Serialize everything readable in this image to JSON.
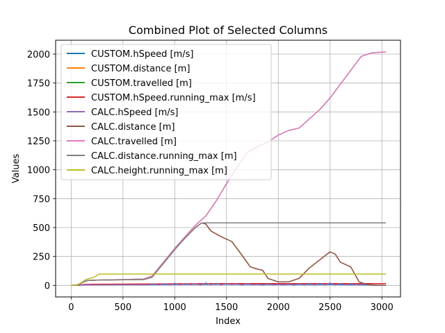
{
  "chart_data": {
    "type": "line",
    "title": "Combined Plot of Selected Columns",
    "xlabel": "Index",
    "ylabel": "Values",
    "xlim": [
      -150,
      3180
    ],
    "ylim": [
      -100,
      2120
    ],
    "xticks": [
      0,
      500,
      1000,
      1500,
      2000,
      2500,
      3000
    ],
    "yticks": [
      0,
      250,
      500,
      750,
      1000,
      1250,
      1500,
      1750,
      2000
    ],
    "grid": true,
    "legend_position": "upper-left",
    "series": [
      {
        "name": "CUSTOM.hSpeed [m/s]",
        "color": "#1f77b4",
        "points": [
          [
            0,
            0
          ],
          [
            80,
            1
          ],
          [
            100,
            3
          ],
          [
            130,
            5
          ],
          [
            200,
            6
          ],
          [
            800,
            6
          ],
          [
            1000,
            8
          ],
          [
            1500,
            9
          ],
          [
            2000,
            6
          ],
          [
            2500,
            8
          ],
          [
            3040,
            0
          ]
        ]
      },
      {
        "name": "CUSTOM.distance [m]",
        "color": "#ff7f0e",
        "points": [
          [
            0,
            0
          ],
          [
            70,
            5
          ],
          [
            120,
            30
          ],
          [
            160,
            42
          ],
          [
            250,
            45
          ],
          [
            500,
            48
          ],
          [
            700,
            50
          ],
          [
            780,
            70
          ],
          [
            900,
            200
          ],
          [
            1000,
            310
          ],
          [
            1100,
            410
          ],
          [
            1200,
            500
          ],
          [
            1260,
            540
          ],
          [
            1300,
            530
          ],
          [
            1350,
            470
          ],
          [
            1450,
            420
          ],
          [
            1550,
            380
          ],
          [
            1650,
            260
          ],
          [
            1730,
            160
          ],
          [
            1800,
            140
          ],
          [
            1850,
            130
          ],
          [
            1900,
            60
          ],
          [
            2000,
            30
          ],
          [
            2100,
            30
          ],
          [
            2200,
            60
          ],
          [
            2300,
            150
          ],
          [
            2400,
            220
          ],
          [
            2500,
            290
          ],
          [
            2550,
            270
          ],
          [
            2600,
            200
          ],
          [
            2700,
            160
          ],
          [
            2780,
            30
          ],
          [
            2850,
            10
          ],
          [
            2950,
            0
          ],
          [
            3040,
            0
          ]
        ]
      },
      {
        "name": "CUSTOM.travelled [m]",
        "color": "#2ca02c",
        "points": [
          [
            0,
            0
          ],
          [
            70,
            5
          ],
          [
            120,
            30
          ],
          [
            160,
            42
          ],
          [
            250,
            45
          ],
          [
            500,
            50
          ],
          [
            700,
            55
          ],
          [
            780,
            80
          ],
          [
            900,
            210
          ],
          [
            1000,
            320
          ],
          [
            1100,
            420
          ],
          [
            1200,
            520
          ],
          [
            1300,
            600
          ],
          [
            1400,
            730
          ],
          [
            1500,
            880
          ],
          [
            1600,
            1020
          ],
          [
            1700,
            1150
          ],
          [
            1800,
            1200
          ],
          [
            1900,
            1240
          ],
          [
            2000,
            1300
          ],
          [
            2100,
            1340
          ],
          [
            2200,
            1360
          ],
          [
            2300,
            1440
          ],
          [
            2400,
            1520
          ],
          [
            2500,
            1620
          ],
          [
            2600,
            1740
          ],
          [
            2700,
            1860
          ],
          [
            2800,
            1980
          ],
          [
            2900,
            2010
          ],
          [
            3040,
            2020
          ]
        ]
      },
      {
        "name": "CUSTOM.hSpeed.running_max [m/s]",
        "color": "#d62728",
        "points": [
          [
            0,
            0
          ],
          [
            80,
            2
          ],
          [
            100,
            5
          ],
          [
            130,
            8
          ],
          [
            200,
            10
          ],
          [
            800,
            12
          ],
          [
            1000,
            14
          ],
          [
            1500,
            15
          ],
          [
            3040,
            15
          ]
        ]
      },
      {
        "name": "CALC.hSpeed [m/s]",
        "color": "#9467bd",
        "points": [
          [
            0,
            0
          ],
          [
            80,
            2
          ],
          [
            150,
            4
          ],
          [
            300,
            4
          ],
          [
            500,
            5
          ],
          [
            750,
            5
          ],
          [
            800,
            12
          ],
          [
            850,
            3
          ],
          [
            900,
            15
          ],
          [
            950,
            5
          ],
          [
            1000,
            18
          ],
          [
            1050,
            4
          ],
          [
            1100,
            16
          ],
          [
            1150,
            6
          ],
          [
            1200,
            14
          ],
          [
            1250,
            3
          ],
          [
            1300,
            20
          ],
          [
            1350,
            5
          ],
          [
            1400,
            18
          ],
          [
            1450,
            4
          ],
          [
            1500,
            15
          ],
          [
            1550,
            6
          ],
          [
            1600,
            12
          ],
          [
            1650,
            3
          ],
          [
            1700,
            14
          ],
          [
            1750,
            5
          ],
          [
            1800,
            10
          ],
          [
            1850,
            2
          ],
          [
            1900,
            12
          ],
          [
            1950,
            4
          ],
          [
            2000,
            8
          ],
          [
            2050,
            3
          ],
          [
            2100,
            12
          ],
          [
            2150,
            2
          ],
          [
            2200,
            14
          ],
          [
            2250,
            4
          ],
          [
            2300,
            16
          ],
          [
            2350,
            3
          ],
          [
            2400,
            18
          ],
          [
            2450,
            5
          ],
          [
            2500,
            20
          ],
          [
            2550,
            4
          ],
          [
            2600,
            16
          ],
          [
            2650,
            3
          ],
          [
            2700,
            14
          ],
          [
            2750,
            4
          ],
          [
            2800,
            10
          ],
          [
            2900,
            2
          ],
          [
            3040,
            0
          ]
        ]
      },
      {
        "name": "CALC.distance [m]",
        "color": "#8c564b",
        "points": [
          [
            0,
            0
          ],
          [
            70,
            5
          ],
          [
            120,
            30
          ],
          [
            160,
            42
          ],
          [
            250,
            45
          ],
          [
            500,
            48
          ],
          [
            700,
            50
          ],
          [
            780,
            70
          ],
          [
            900,
            200
          ],
          [
            1000,
            310
          ],
          [
            1100,
            410
          ],
          [
            1200,
            500
          ],
          [
            1260,
            540
          ],
          [
            1300,
            530
          ],
          [
            1350,
            470
          ],
          [
            1450,
            420
          ],
          [
            1550,
            380
          ],
          [
            1650,
            260
          ],
          [
            1730,
            160
          ],
          [
            1800,
            140
          ],
          [
            1850,
            130
          ],
          [
            1900,
            60
          ],
          [
            2000,
            30
          ],
          [
            2100,
            30
          ],
          [
            2200,
            60
          ],
          [
            2300,
            150
          ],
          [
            2400,
            220
          ],
          [
            2500,
            290
          ],
          [
            2550,
            270
          ],
          [
            2600,
            200
          ],
          [
            2700,
            160
          ],
          [
            2780,
            30
          ],
          [
            2850,
            10
          ],
          [
            2950,
            0
          ],
          [
            3040,
            0
          ]
        ]
      },
      {
        "name": "CALC.travelled [m]",
        "color": "#e377c2",
        "points": [
          [
            0,
            0
          ],
          [
            70,
            5
          ],
          [
            120,
            30
          ],
          [
            160,
            42
          ],
          [
            250,
            45
          ],
          [
            500,
            50
          ],
          [
            700,
            55
          ],
          [
            780,
            80
          ],
          [
            900,
            210
          ],
          [
            1000,
            320
          ],
          [
            1100,
            420
          ],
          [
            1200,
            520
          ],
          [
            1300,
            600
          ],
          [
            1400,
            730
          ],
          [
            1500,
            880
          ],
          [
            1600,
            1020
          ],
          [
            1700,
            1150
          ],
          [
            1800,
            1200
          ],
          [
            1900,
            1240
          ],
          [
            2000,
            1300
          ],
          [
            2100,
            1340
          ],
          [
            2200,
            1360
          ],
          [
            2300,
            1440
          ],
          [
            2400,
            1520
          ],
          [
            2500,
            1620
          ],
          [
            2600,
            1740
          ],
          [
            2700,
            1860
          ],
          [
            2800,
            1980
          ],
          [
            2900,
            2010
          ],
          [
            3040,
            2020
          ]
        ]
      },
      {
        "name": "CALC.distance.running_max [m]",
        "color": "#7f7f7f",
        "points": [
          [
            0,
            0
          ],
          [
            70,
            5
          ],
          [
            120,
            30
          ],
          [
            160,
            42
          ],
          [
            250,
            45
          ],
          [
            500,
            48
          ],
          [
            700,
            50
          ],
          [
            780,
            70
          ],
          [
            900,
            200
          ],
          [
            1000,
            310
          ],
          [
            1100,
            410
          ],
          [
            1200,
            500
          ],
          [
            1260,
            540
          ],
          [
            3040,
            540
          ]
        ]
      },
      {
        "name": "CALC.height.running_max [m]",
        "color": "#bcbd22",
        "points": [
          [
            0,
            0
          ],
          [
            60,
            5
          ],
          [
            100,
            25
          ],
          [
            140,
            50
          ],
          [
            180,
            60
          ],
          [
            220,
            70
          ],
          [
            270,
            98
          ],
          [
            3040,
            98
          ]
        ]
      }
    ]
  }
}
